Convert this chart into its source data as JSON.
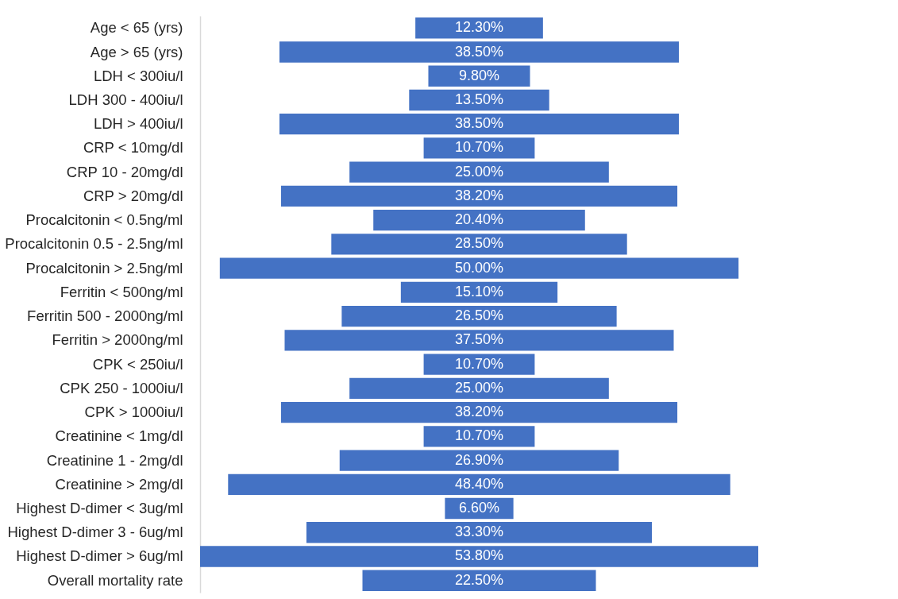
{
  "chart_data": {
    "type": "other",
    "categories": [
      "Age < 65 (yrs)",
      "Age > 65 (yrs)",
      "LDH < 300iu/l",
      "LDH 300 - 400iu/l",
      "LDH > 400iu/l",
      "CRP < 10mg/dl",
      "CRP  10 - 20mg/dl",
      "CRP > 20mg/dl",
      "Procalcitonin < 0.5ng/ml",
      "Procalcitonin 0.5 - 2.5ng/ml",
      "Procalcitonin > 2.5ng/ml",
      "Ferritin < 500ng/ml",
      "Ferritin 500 - 2000ng/ml",
      "Ferritin > 2000ng/ml",
      "CPK < 250iu/l",
      "CPK 250 - 1000iu/l",
      "CPK > 1000iu/l",
      "Creatinine < 1mg/dl",
      "Creatinine 1 - 2mg/dl",
      "Creatinine > 2mg/dl",
      "Highest D-dimer < 3ug/ml",
      "Highest D-dimer 3 - 6ug/ml",
      "Highest D-dimer > 6ug/ml",
      "Overall mortality rate"
    ],
    "values": [
      12.3,
      38.5,
      9.8,
      13.5,
      38.5,
      10.7,
      25.0,
      38.2,
      20.4,
      28.5,
      50.0,
      15.1,
      26.5,
      37.5,
      10.7,
      25.0,
      38.2,
      10.7,
      26.9,
      48.4,
      6.6,
      33.3,
      53.8,
      22.5
    ],
    "value_labels": [
      "12.30%",
      "38.50%",
      "9.80%",
      "13.50%",
      "38.50%",
      "10.70%",
      "25.00%",
      "38.20%",
      "20.40%",
      "28.50%",
      "50.00%",
      "15.10%",
      "26.50%",
      "37.50%",
      "10.70%",
      "25.00%",
      "38.20%",
      "10.70%",
      "26.90%",
      "48.40%",
      "6.60%",
      "33.30%",
      "53.80%",
      "22.50%"
    ],
    "color": "#4472c4"
  }
}
